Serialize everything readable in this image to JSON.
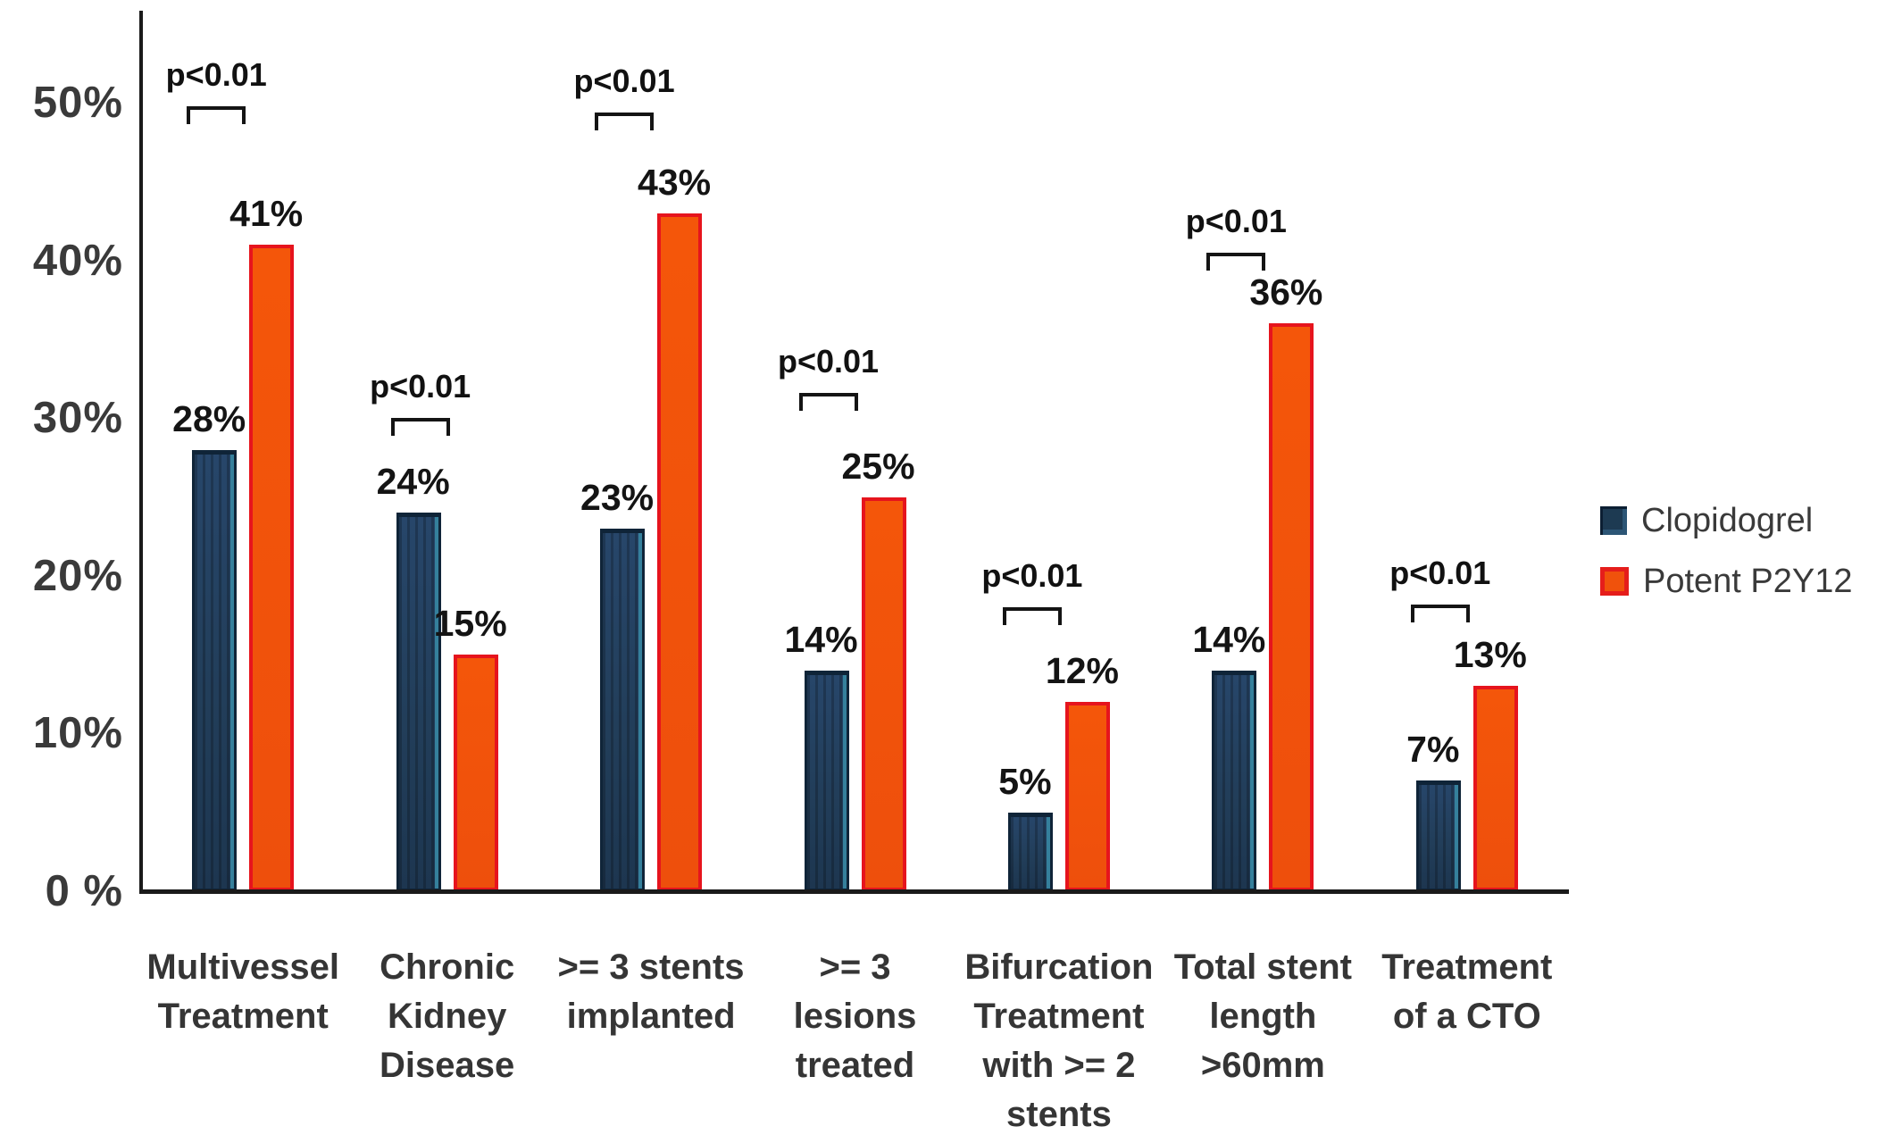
{
  "chart_data": {
    "type": "bar",
    "title": "",
    "categories": [
      "Multivessel\nTreatment",
      "Chronic\nKidney\nDisease",
      ">= 3 stents\nimplanted",
      ">= 3\nlesions\ntreated",
      "Bifurcation\nTreatment\nwith >= 2\nstents",
      "Total stent\nlength\n>60mm",
      "Treatment\nof a CTO"
    ],
    "series": [
      {
        "name": "Clopidogrel",
        "values": [
          28,
          24,
          23,
          14,
          5,
          14,
          7
        ],
        "color": "#21405d",
        "border_color": "#0f2438"
      },
      {
        "name": "Potent P2Y12",
        "values": [
          41,
          15,
          43,
          25,
          12,
          36,
          13
        ],
        "color": "#f05309",
        "border_color": "#e6141d"
      }
    ],
    "value_labels": [
      [
        "28%",
        "41%"
      ],
      [
        "24%",
        "15%"
      ],
      [
        "23%",
        "43%"
      ],
      [
        "14%",
        "25%"
      ],
      [
        "5%",
        "12%"
      ],
      [
        "14%",
        "36%"
      ],
      [
        "7%",
        "13%"
      ]
    ],
    "significance_labels": [
      "p<0.01",
      "p<0.01",
      "p<0.01",
      "p<0.01",
      "p<0.01",
      "p<0.01",
      "p<0.01"
    ],
    "bracket_heights_pct": [
      49.8,
      30.0,
      49.4,
      31.6,
      18.0,
      40.5,
      18.2
    ],
    "y_axis": {
      "ticks": [
        {
          "label": "50%",
          "value": 50
        },
        {
          "label": "40%",
          "value": 40
        },
        {
          "label": "30%",
          "value": 30
        },
        {
          "label": "20%",
          "value": 20
        },
        {
          "label": "10%",
          "value": 10
        },
        {
          "label": "0 %",
          "value": 0
        }
      ],
      "min": 0,
      "max": 55.8
    },
    "grid": false,
    "legend_position": "right",
    "xlabel": "",
    "ylabel": ""
  },
  "legend": {
    "items": [
      {
        "label": "Clopidogrel",
        "color": "#1d3a52"
      },
      {
        "label": "Potent P2Y12",
        "color": "#f0520c"
      }
    ]
  }
}
